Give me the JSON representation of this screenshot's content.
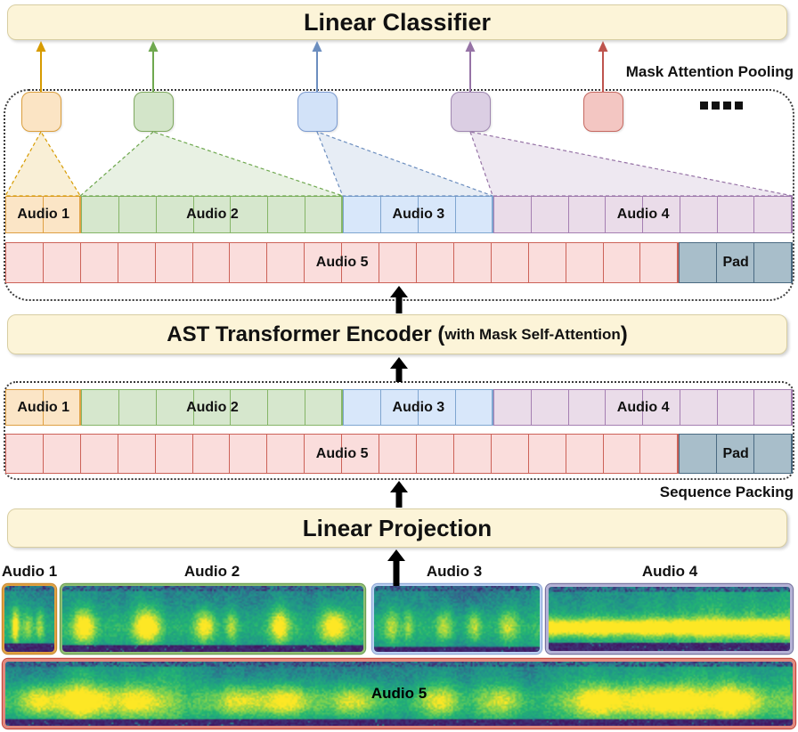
{
  "figure": {
    "classifier_label": "Linear Classifier",
    "pooling_label": "Mask Attention Pooling",
    "encoder_label_prefix": "AST Transformer Encoder (",
    "encoder_label_detail": "with Mask Self-Attention",
    "encoder_label_suffix": ")",
    "packing_label": "Sequence Packing",
    "projection_label": "Linear Projection",
    "ellipsis": "...."
  },
  "streams": [
    {
      "id": "audio1",
      "label": "Audio 1",
      "accent": "#D79B00",
      "box_fill": "#FBE4C4",
      "box_border": "#DB9F3D",
      "token_fill": "#FBE5C6",
      "token_border": "#DFA044"
    },
    {
      "id": "audio2",
      "label": "Audio 2",
      "accent": "#6FA84F",
      "box_fill": "#D3E5C9",
      "box_border": "#7FA95F",
      "token_fill": "#D6E7CD",
      "token_border": "#85B567"
    },
    {
      "id": "audio3",
      "label": "Audio 3",
      "accent": "#6C8EBF",
      "box_fill": "#D2E2F8",
      "box_border": "#7C9BD0",
      "token_fill": "#D8E7FA",
      "token_border": "#7FA6D0"
    },
    {
      "id": "audio4",
      "label": "Audio 4",
      "accent": "#9673A6",
      "box_fill": "#DBCEE3",
      "box_border": "#9F87B0",
      "token_fill": "#EADCE9",
      "token_border": "#A57FB2"
    },
    {
      "id": "audio5",
      "label": "Audio 5",
      "accent": "#BE544E",
      "box_fill": "#F3C6C2",
      "box_border": "#C66860",
      "token_fill": "#FADDDC",
      "token_border": "#CC6258"
    }
  ],
  "pad": {
    "id": "pad",
    "label": "Pad",
    "token_fill": "#A8BECA",
    "token_border": "#4A6A82"
  },
  "packed_rows": {
    "row1": [
      {
        "stream": "audio1",
        "cells": 2
      },
      {
        "stream": "audio2",
        "cells": 7
      },
      {
        "stream": "audio3",
        "cells": 4
      },
      {
        "stream": "audio4",
        "cells": 8
      }
    ],
    "row2": [
      {
        "stream": "audio5",
        "cells": 18
      },
      {
        "stream": "pad",
        "cells": 3
      }
    ]
  },
  "spectrograms": [
    {
      "stream": "audio1",
      "label": "Audio 1",
      "border": "#E0A141",
      "outline": "#C98A2E"
    },
    {
      "stream": "audio2",
      "label": "Audio 2",
      "border": "#8FBF73",
      "outline": "#6B9E50"
    },
    {
      "stream": "audio3",
      "label": "Audio 3",
      "border": "#B8CFF0",
      "outline": "#8FA8D8"
    },
    {
      "stream": "audio4",
      "label": "Audio 4",
      "border": "#B5B2D6",
      "outline": "#76739F"
    },
    {
      "stream": "audio5",
      "label": "Audio 5",
      "border": "#E2897E",
      "outline": "#C54A3E"
    }
  ],
  "colors": {
    "arrow_black": "#000000",
    "dotted_border": "#3a3a3a",
    "panel_fill": "#FCF4D8",
    "panel_border": "#D8CEA2"
  }
}
